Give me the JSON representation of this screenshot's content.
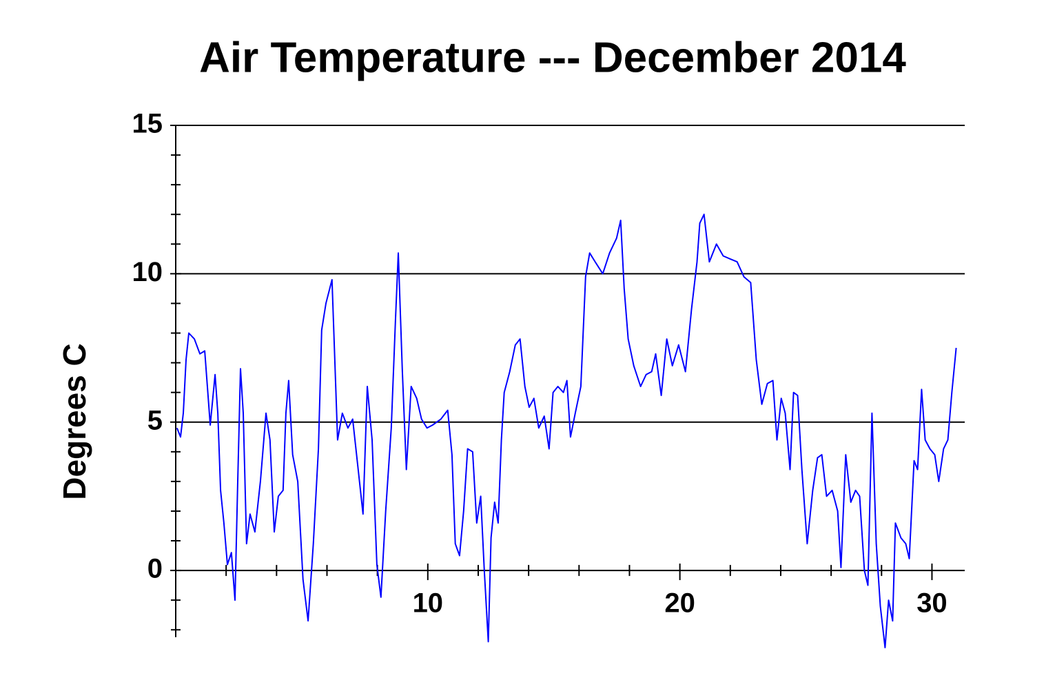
{
  "chart_data": {
    "type": "line",
    "title": "Air Temperature --- December 2014",
    "ylabel": "Degrees C",
    "xlim": [
      0,
      31.3
    ],
    "ylim": [
      -2.25,
      15
    ],
    "xticks": [
      10,
      20,
      30
    ],
    "yticks": [
      0,
      5,
      10,
      15
    ],
    "xminorticks": [
      2,
      4,
      6,
      8,
      12,
      14,
      16,
      18,
      22,
      24,
      26,
      28
    ],
    "yminorticks": [
      -2,
      -1,
      1,
      2,
      3,
      4,
      6,
      7,
      8,
      9,
      11,
      12,
      13,
      14
    ],
    "grid": true,
    "series": [
      {
        "name": "Air Temperature",
        "color": "#0000ff",
        "x": [
          0.05,
          0.19,
          0.3,
          0.41,
          0.52,
          0.74,
          0.96,
          1.15,
          1.37,
          1.56,
          1.67,
          1.78,
          1.91,
          2.05,
          2.21,
          2.35,
          2.46,
          2.57,
          2.68,
          2.81,
          2.95,
          3.14,
          3.36,
          3.58,
          3.74,
          3.91,
          4.07,
          4.26,
          4.37,
          4.48,
          4.64,
          4.84,
          5.05,
          5.25,
          5.46,
          5.66,
          5.79,
          5.96,
          6.2,
          6.42,
          6.61,
          6.83,
          7.02,
          7.24,
          7.43,
          7.6,
          7.79,
          7.98,
          8.14,
          8.33,
          8.55,
          8.72,
          8.83,
          8.99,
          9.15,
          9.34,
          9.56,
          9.75,
          9.97,
          10.19,
          10.52,
          10.79,
          10.96,
          11.09,
          11.26,
          11.42,
          11.58,
          11.78,
          11.94,
          12.1,
          12.24,
          12.4,
          12.51,
          12.65,
          12.79,
          12.92,
          13.03,
          13.25,
          13.47,
          13.66,
          13.85,
          14.02,
          14.21,
          14.4,
          14.62,
          14.81,
          14.97,
          15.16,
          15.38,
          15.52,
          15.66,
          15.85,
          16.07,
          16.26,
          16.42,
          16.64,
          16.94,
          17.21,
          17.49,
          17.65,
          17.79,
          17.95,
          18.17,
          18.44,
          18.66,
          18.88,
          19.04,
          19.26,
          19.48,
          19.7,
          19.95,
          20.22,
          20.46,
          20.68,
          20.79,
          20.96,
          21.17,
          21.45,
          21.72,
          21.99,
          22.27,
          22.54,
          22.81,
          23.03,
          23.25,
          23.47,
          23.69,
          23.85,
          24.02,
          24.18,
          24.37,
          24.51,
          24.67,
          24.84,
          25.05,
          25.27,
          25.46,
          25.63,
          25.82,
          26.04,
          26.26,
          26.39,
          26.58,
          26.78,
          26.97,
          27.13,
          27.32,
          27.46,
          27.62,
          27.79,
          27.95,
          28.14,
          28.28,
          28.44,
          28.55,
          28.77,
          28.96,
          29.1,
          29.29,
          29.43,
          29.59,
          29.73,
          29.92,
          30.11,
          30.27,
          30.46,
          30.63,
          30.79,
          30.96
        ],
        "values": [
          4.8,
          4.5,
          5.3,
          7.1,
          8.0,
          7.8,
          7.3,
          7.4,
          4.9,
          6.6,
          5.3,
          2.7,
          1.6,
          0.2,
          0.6,
          -1.0,
          3.0,
          6.8,
          5.3,
          0.9,
          1.9,
          1.3,
          3.0,
          5.3,
          4.4,
          1.3,
          2.5,
          2.7,
          5.3,
          6.4,
          3.9,
          3.0,
          -0.3,
          -1.7,
          0.9,
          4.1,
          8.1,
          9.0,
          9.8,
          4.4,
          5.3,
          4.8,
          5.1,
          3.4,
          1.9,
          6.2,
          4.4,
          0.2,
          -0.9,
          2.0,
          4.8,
          8.5,
          10.7,
          6.7,
          3.4,
          6.2,
          5.8,
          5.1,
          4.8,
          4.9,
          5.1,
          5.4,
          3.9,
          0.9,
          0.5,
          2.0,
          4.1,
          4.0,
          1.6,
          2.5,
          0.0,
          -2.4,
          1.1,
          2.3,
          1.6,
          4.4,
          6.0,
          6.7,
          7.6,
          7.8,
          6.2,
          5.5,
          5.8,
          4.8,
          5.2,
          4.1,
          6.0,
          6.2,
          6.0,
          6.4,
          4.5,
          5.3,
          6.2,
          9.9,
          10.7,
          10.4,
          10.0,
          10.7,
          11.2,
          11.8,
          9.5,
          7.8,
          6.9,
          6.2,
          6.6,
          6.7,
          7.3,
          5.9,
          7.8,
          6.9,
          7.6,
          6.7,
          8.8,
          10.4,
          11.7,
          12.0,
          10.4,
          11.0,
          10.6,
          10.5,
          10.4,
          9.9,
          9.7,
          7.1,
          5.6,
          6.3,
          6.4,
          4.4,
          5.8,
          5.3,
          3.4,
          6.0,
          5.9,
          3.4,
          0.9,
          2.7,
          3.8,
          3.9,
          2.5,
          2.7,
          2.0,
          0.1,
          3.9,
          2.3,
          2.7,
          2.5,
          0.0,
          -0.5,
          5.3,
          0.9,
          -1.2,
          -2.6,
          -1.0,
          -1.7,
          1.6,
          1.1,
          0.9,
          0.4,
          3.7,
          3.4,
          6.1,
          4.4,
          4.1,
          3.9,
          3.0,
          4.1,
          4.4,
          6.0,
          7.5
        ]
      }
    ]
  }
}
